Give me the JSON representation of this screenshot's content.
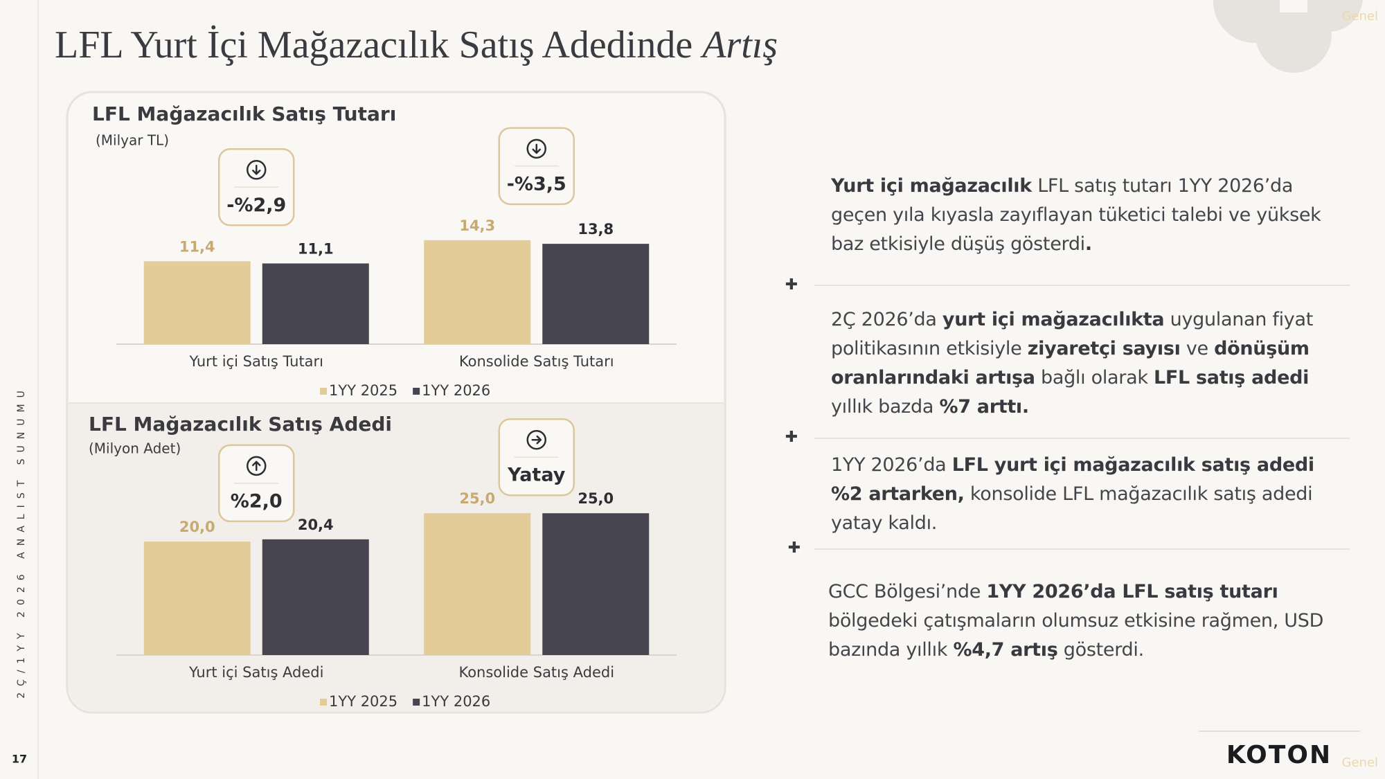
{
  "title": "LFL Yurt İçi Mağazacılık Satış Adedinde",
  "title_emphasis": "Artış",
  "side_label": "2Ç/1YY 2026 ANALIST SUNUMU",
  "page_number": "17",
  "classification": "Genel",
  "logo": "KOTON",
  "chart_data": [
    {
      "type": "bar",
      "title": "LFL Mağazacılık Satış Tutarı",
      "subtitle": "(Milyar TL)",
      "categories": [
        "Yurt içi Satış Tutarı",
        "Konsolide Satış Tutarı"
      ],
      "series": [
        {
          "name": "1YY 2025",
          "color": "#e3cc98",
          "values": [
            11.4,
            14.3
          ],
          "value_labels": [
            "11,4",
            "14,3"
          ]
        },
        {
          "name": "1YY 2026",
          "color": "#474650",
          "values": [
            11.1,
            13.8
          ],
          "value_labels": [
            "11,1",
            "13,8"
          ]
        }
      ],
      "ylim": [
        0,
        16
      ],
      "annotations": [
        "-%2,9",
        "-%3,5"
      ],
      "annotation_icons": [
        "down",
        "down"
      ]
    },
    {
      "type": "bar",
      "title": "LFL Mağazacılık Satış Adedi",
      "subtitle": "(Milyon Adet)",
      "categories": [
        "Yurt içi Satış Adedi",
        "Konsolide Satış Adedi"
      ],
      "series": [
        {
          "name": "1YY 2025",
          "color": "#e3cc98",
          "values": [
            20.0,
            25.0
          ],
          "value_labels": [
            "20,0",
            "25,0"
          ]
        },
        {
          "name": "1YY 2026",
          "color": "#474650",
          "values": [
            20.4,
            25.0
          ],
          "value_labels": [
            "20,4",
            "25,0"
          ]
        }
      ],
      "ylim": [
        0,
        26
      ],
      "annotations": [
        "%2,0",
        "Yatay"
      ],
      "annotation_icons": [
        "up",
        "right"
      ]
    }
  ],
  "paragraphs": [
    [
      {
        "text": "Yurt içi mağazacılık",
        "bold": true
      },
      {
        "text": " LFL satış tutarı 1YY 2026’da geçen yıla kıyasla zayıflayan tüketici talebi ve yüksek baz etkisiyle düşüş gösterdi",
        "bold": false
      },
      {
        "text": ".",
        "bold": true
      }
    ],
    [
      {
        "text": "2Ç 2026’da ",
        "bold": false
      },
      {
        "text": "yurt içi mağazacılıkta",
        "bold": true
      },
      {
        "text": " uygulanan fiyat politikasının etkisiyle ",
        "bold": false
      },
      {
        "text": "ziyaretçi sayısı",
        "bold": true
      },
      {
        "text": " ve ",
        "bold": false
      },
      {
        "text": "dönüşüm oranlarındaki artışa",
        "bold": true
      },
      {
        "text": " bağlı olarak ",
        "bold": false
      },
      {
        "text": "LFL satış adedi",
        "bold": true
      },
      {
        "text": " yıllık bazda ",
        "bold": false
      },
      {
        "text": "%7 arttı.",
        "bold": true
      }
    ],
    [
      {
        "text": "1YY 2026’da ",
        "bold": false
      },
      {
        "text": "LFL yurt içi mağazacılık satış adedi %2 artarken,",
        "bold": true
      },
      {
        "text": " konsolide LFL mağazacılık satış adedi yatay kaldı.",
        "bold": false
      }
    ],
    [
      {
        "text": "GCC Bölgesi’nde ",
        "bold": false
      },
      {
        "text": "1YY 2026’da LFL satış tutarı",
        "bold": true
      },
      {
        "text": " bölgedeki çatışmaların olumsuz etkisine rağmen, USD bazında yıllık ",
        "bold": false
      },
      {
        "text": "%4,7 artış",
        "bold": true
      },
      {
        "text": " gösterdi.",
        "bold": false
      }
    ]
  ]
}
